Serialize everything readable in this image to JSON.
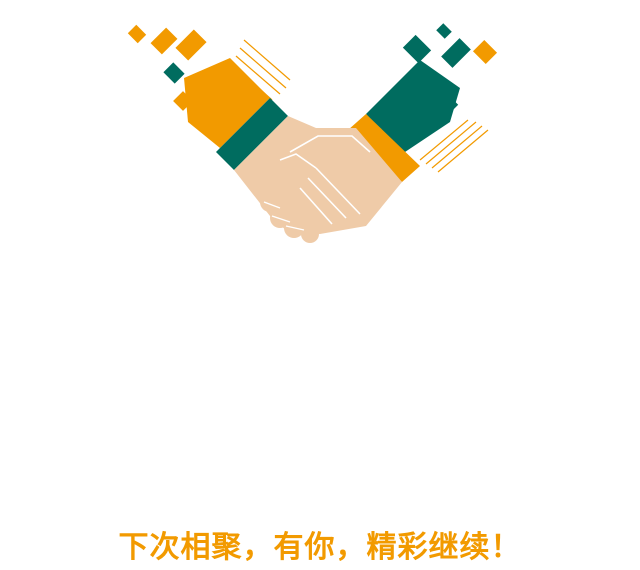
{
  "tagline": "下次相聚，有你，精彩继续！",
  "colors": {
    "orange": "#F29A00",
    "teal": "#006C5F",
    "skin": "#EFCBA8",
    "background": "#FFFFFF"
  },
  "illustration": {
    "name": "handshake-icon",
    "description_icon": "pixelated-handshake"
  }
}
